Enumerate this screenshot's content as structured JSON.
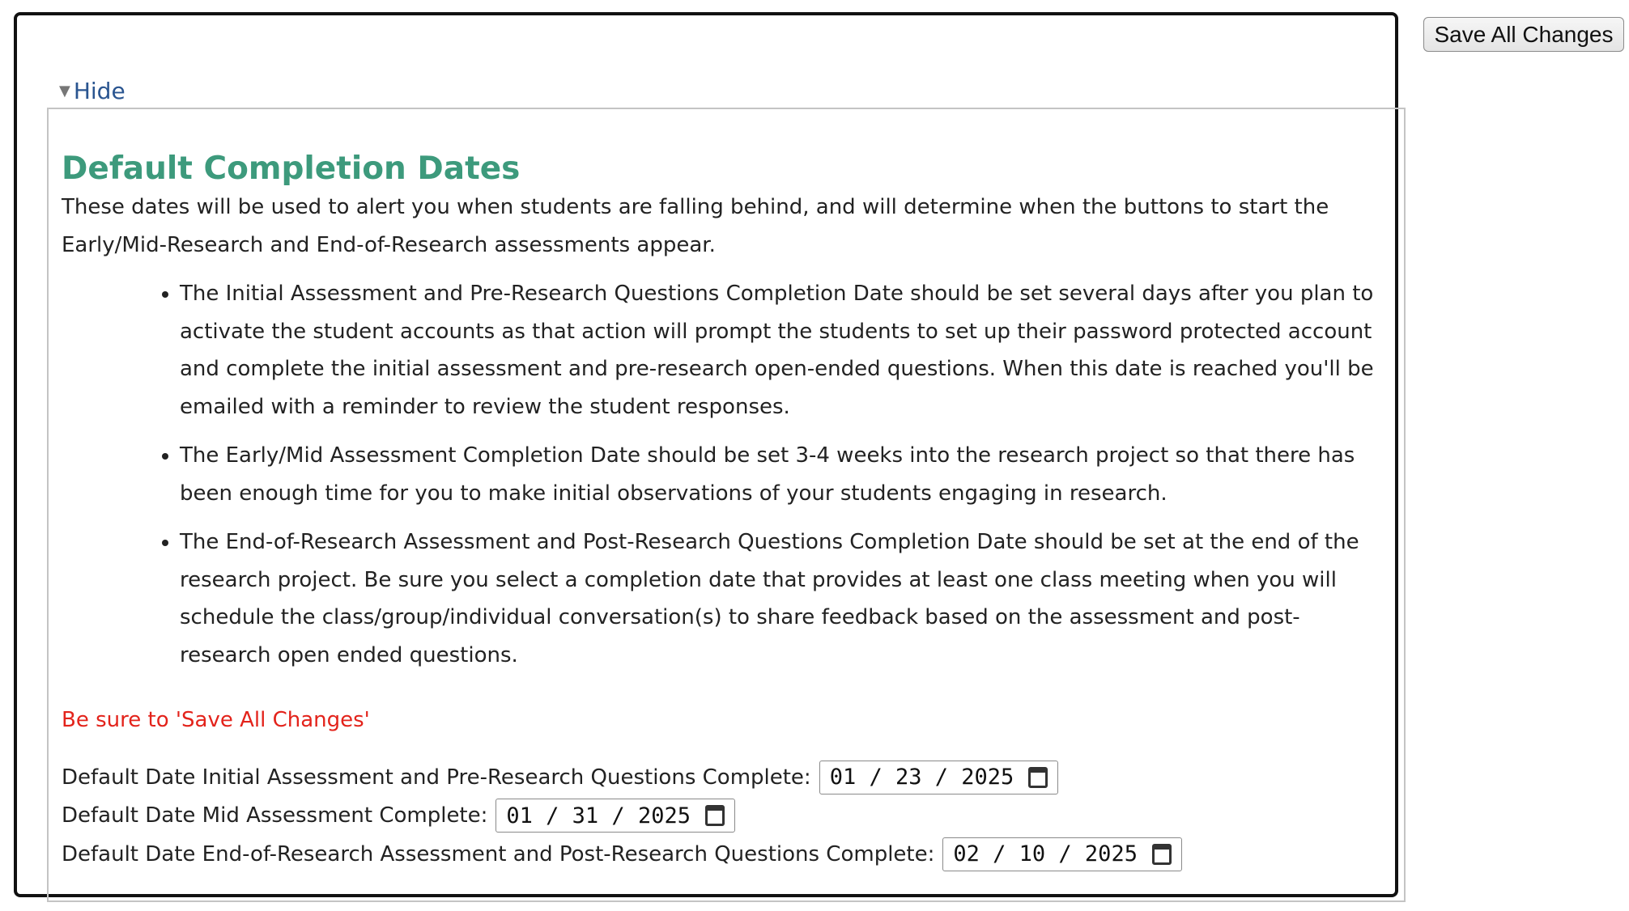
{
  "toolbar": {
    "save_label": "Save All Changes"
  },
  "section": {
    "toggle_label": "Hide",
    "title": "Default Completion Dates",
    "intro": "These dates will be used to alert you when students are falling behind, and will determine when the buttons to start the Early/Mid-Research and End-of-Research assessments appear.",
    "bullets": [
      "The Initial Assessment and Pre-Research Questions Completion Date should be set several days after you plan to activate the student accounts as that action will prompt the students to set up their password protected account and complete the initial assessment and pre-research open-ended questions. When this date is reached you'll be emailed with a reminder to review the student responses.",
      "The Early/Mid Assessment Completion Date should be set 3-4 weeks into the research project so that there has been enough time for you to make initial observations of your students engaging in research.",
      "The End-of-Research Assessment and Post-Research Questions Completion Date should be set at the end of the research project. Be sure you select a completion date that provides at least one class meeting when you will schedule the class/group/individual conversation(s) to share feedback based on the assessment and post-research open ended questions."
    ],
    "warning": "Be sure to 'Save All Changes'",
    "dates": [
      {
        "label": "Default Date Initial Assessment and Pre-Research Questions Complete:",
        "value": "01 / 23 / 2025"
      },
      {
        "label": "Default Date Mid Assessment Complete:",
        "value": "01 / 31 / 2025"
      },
      {
        "label": "Default Date End-of-Research Assessment and Post-Research Questions Complete:",
        "value": "02 / 10 / 2025"
      }
    ]
  },
  "colors": {
    "title": "#3d9a7c",
    "warning": "#e3231b",
    "link": "#2a5590"
  }
}
